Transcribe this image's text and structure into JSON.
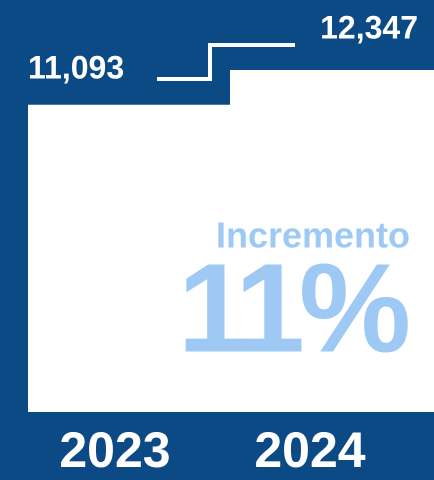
{
  "chart_data": {
    "type": "bar",
    "categories": [
      "2023",
      "2024"
    ],
    "values": [
      11093,
      12347
    ],
    "value_labels": [
      "11,093",
      "12,347"
    ],
    "color": "#ffffff",
    "background": "#0b4a84",
    "annotations": [
      "Incremento",
      "11%"
    ],
    "annotation_color": "#9ec9f5"
  }
}
